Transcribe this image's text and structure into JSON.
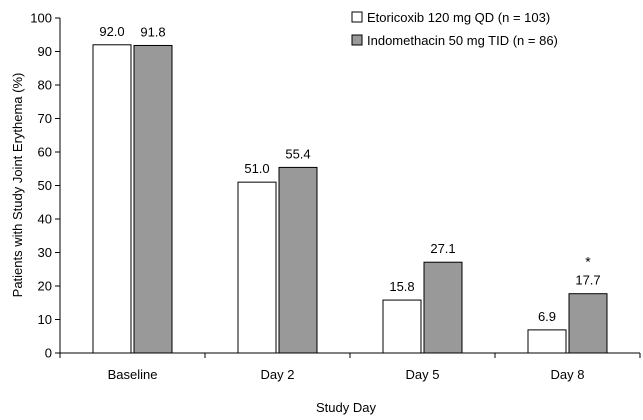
{
  "chart_data": {
    "type": "bar",
    "title": "",
    "xlabel": "Study Day",
    "ylabel": "Patients with Study Joint Erythema (%)",
    "ylim": [
      0,
      100
    ],
    "yticks": [
      0,
      10,
      20,
      30,
      40,
      50,
      60,
      70,
      80,
      90,
      100
    ],
    "categories": [
      "Baseline",
      "Day 2",
      "Day 5",
      "Day 8"
    ],
    "series": [
      {
        "name": "Etoricoxib 120 mg QD (n = 103)",
        "values": [
          92.0,
          51.0,
          15.8,
          6.9
        ],
        "labels": [
          "92.0",
          "51.0",
          "15.8",
          "6.9"
        ],
        "color": "#ffffff"
      },
      {
        "name": "Indomethacin 50 mg TID (n = 86)",
        "values": [
          91.8,
          55.4,
          27.1,
          17.7
        ],
        "labels": [
          "91.8",
          "55.4",
          "27.1",
          "17.7"
        ],
        "color": "#999999"
      }
    ],
    "annotations": [
      {
        "category": "Day 8",
        "series": 1,
        "text": "*"
      }
    ],
    "legend_position": "top-right",
    "grid": false
  }
}
